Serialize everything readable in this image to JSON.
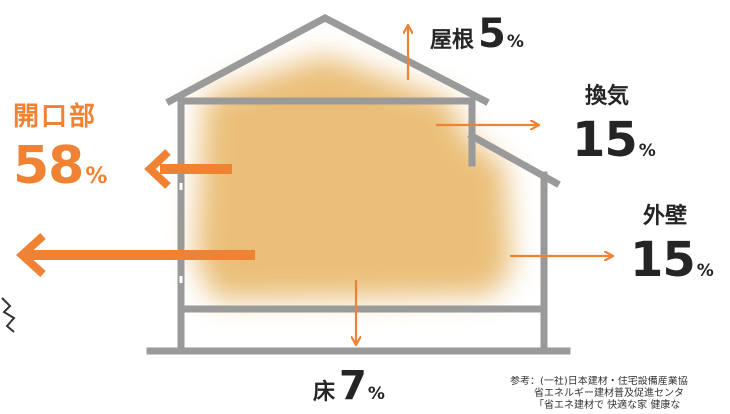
{
  "heat_loss": {
    "opening": {
      "label": "開口部",
      "value": "58",
      "unit": "%"
    },
    "roof": {
      "label": "屋根",
      "value": "5",
      "unit": "%"
    },
    "ventilation": {
      "label": "換気",
      "value": "15",
      "unit": "%"
    },
    "wall": {
      "label": "外壁",
      "value": "15",
      "unit": "%"
    },
    "floor": {
      "label": "床",
      "value": "7",
      "unit": "%"
    }
  },
  "source": {
    "line1": "参考：(一社)日本建材・住宅設備産業協",
    "line2": "省エネルギー建材普及促進センタ",
    "line3": "「省エネ建材で 快適な家 健康な"
  },
  "colors": {
    "arrow": "#f08233",
    "house_outline": "#9a9a9a",
    "warm_interior": "#e8b86b",
    "heading_accent": "#f08233"
  }
}
